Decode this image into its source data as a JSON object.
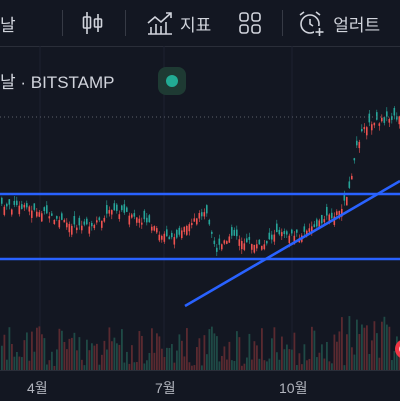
{
  "toolbar": {
    "partial_label": "날",
    "indicators_label": "지표",
    "alerts_label": "얼러트"
  },
  "symbol": {
    "title": "날 · BITSTAMP",
    "status_color": "#22ab94"
  },
  "xaxis": {
    "labels": [
      "4월",
      "7월",
      "10월"
    ]
  },
  "colors": {
    "background": "#131722",
    "up": "#26a69a",
    "down": "#ef5350",
    "trendline": "#2962ff"
  }
}
